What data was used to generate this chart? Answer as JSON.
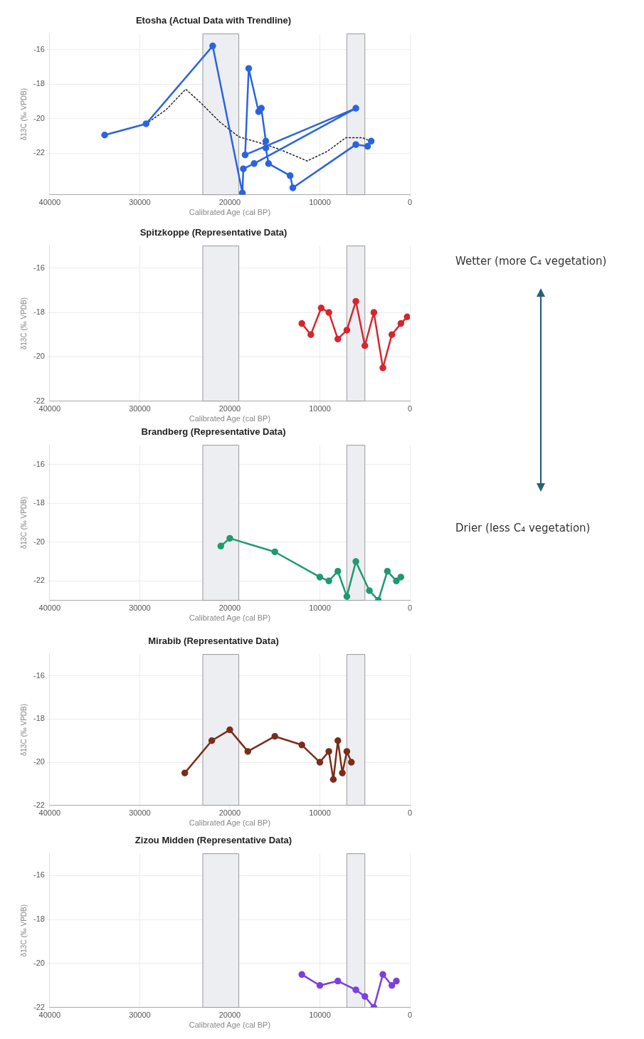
{
  "chart_data": [
    {
      "type": "line",
      "title": "Etosha (Actual Data with Trendline)",
      "xlabel": "Calibrated Age (cal BP)",
      "ylabel": "δ13C (‰ VPDB)",
      "xlim": [
        40000,
        0
      ],
      "xticks": [
        40000,
        30000,
        20000,
        10000,
        0
      ],
      "ylim": [
        -24.4,
        -15.1
      ],
      "yticks": [
        -22,
        -20,
        -18,
        -16
      ],
      "grid": true,
      "marker": "circle",
      "line_style": "solid",
      "bands": [
        {
          "axis": "x",
          "from": 23000,
          "to": 19000,
          "color": "#eceef2"
        },
        {
          "axis": "x",
          "from": 7000,
          "to": 5000,
          "color": "#eceef2"
        }
      ],
      "series": [
        {
          "color": "#2b63e0",
          "x": [
            33900,
            29300,
            21900,
            18600,
            18500,
            17300,
            6000,
            18300,
            17900,
            16800,
            16500,
            16000,
            16000,
            15700,
            13300,
            13000,
            6000,
            4700,
            4300
          ],
          "values": [
            -20.95,
            -20.3,
            -15.8,
            -24.3,
            -22.9,
            -22.6,
            -19.4,
            -22.1,
            -17.1,
            -19.6,
            -19.4,
            -21.3,
            -21.7,
            -22.6,
            -23.3,
            -24.0,
            -21.5,
            -21.6,
            -21.3
          ]
        },
        {
          "color": "#222222",
          "marker": "none",
          "line_style": "dotted",
          "x": [
            29300,
            27100,
            24900,
            23200,
            21100,
            19000,
            16700,
            14600,
            11400,
            9200,
            7100,
            5300,
            4100
          ],
          "values": [
            -20.3,
            -19.5,
            -18.3,
            -19.1,
            -20.2,
            -21.05,
            -21.4,
            -21.75,
            -22.45,
            -21.9,
            -21.1,
            -21.1,
            -21.35
          ]
        }
      ]
    },
    {
      "type": "line",
      "title": "Spitzkoppe (Representative Data)",
      "xlabel": "Calibrated Age (cal BP)",
      "ylabel": "δ13C (‰ VPDB)",
      "xlim": [
        40000,
        0
      ],
      "xticks": [
        40000,
        30000,
        20000,
        10000,
        0
      ],
      "ylim": [
        -22,
        -15
      ],
      "yticks": [
        -22,
        -20,
        -18,
        -16
      ],
      "grid": true,
      "marker": "circle",
      "line_style": "solid",
      "bands": [
        {
          "axis": "x",
          "from": 23000,
          "to": 19000,
          "color": "#eceef2"
        },
        {
          "axis": "x",
          "from": 7000,
          "to": 5000,
          "color": "#eceef2"
        }
      ],
      "series": [
        {
          "color": "#d6262f",
          "x": [
            12000,
            11000,
            9850,
            9000,
            8000,
            7000,
            6000,
            5000,
            4000,
            3000,
            2000,
            1000,
            300
          ],
          "values": [
            -18.5,
            -19.0,
            -17.8,
            -18.0,
            -19.2,
            -18.8,
            -17.5,
            -19.5,
            -18.0,
            -20.5,
            -19.0,
            -18.5,
            -18.2
          ]
        }
      ]
    },
    {
      "type": "line",
      "title": "Brandberg (Representative Data)",
      "xlabel": "Calibrated Age (cal BP)",
      "ylabel": "δ13C (‰ VPDB)",
      "xlim": [
        40000,
        0
      ],
      "xticks": [
        40000,
        30000,
        20000,
        10000,
        0
      ],
      "ylim": [
        -23,
        -15
      ],
      "yticks": [
        -22,
        -20,
        -18,
        -16
      ],
      "grid": true,
      "marker": "circle",
      "line_style": "solid",
      "bands": [
        {
          "axis": "x",
          "from": 23000,
          "to": 19000,
          "color": "#eceef2"
        },
        {
          "axis": "x",
          "from": 7000,
          "to": 5000,
          "color": "#eceef2"
        }
      ],
      "series": [
        {
          "color": "#1f9a6e",
          "x": [
            21000,
            20000,
            15000,
            10000,
            9000,
            8000,
            7000,
            6000,
            4500,
            3500,
            2500,
            1500,
            1000
          ],
          "values": [
            -20.2,
            -19.8,
            -20.5,
            -21.8,
            -22.0,
            -21.5,
            -22.8,
            -21.0,
            -22.5,
            -23.0,
            -21.5,
            -22.0,
            -21.8
          ]
        }
      ]
    },
    {
      "type": "line",
      "title": "Mirabib (Representative Data)",
      "xlabel": "Calibrated Age (cal BP)",
      "ylabel": "δ13C (‰ VPDB)",
      "xlim": [
        40000,
        0
      ],
      "xticks": [
        40000,
        30000,
        20000,
        10000,
        0
      ],
      "ylim": [
        -22,
        -15
      ],
      "yticks": [
        -22,
        -20,
        -18,
        -16
      ],
      "grid": true,
      "marker": "circle",
      "line_style": "solid",
      "bands": [
        {
          "axis": "x",
          "from": 23000,
          "to": 19000,
          "color": "#eceef2"
        },
        {
          "axis": "x",
          "from": 7000,
          "to": 5000,
          "color": "#eceef2"
        }
      ],
      "series": [
        {
          "color": "#7a2e1a",
          "x": [
            25000,
            22000,
            20000,
            18000,
            15000,
            12000,
            10000,
            9000,
            8500,
            8000,
            7500,
            7000,
            6500
          ],
          "values": [
            -20.5,
            -19.0,
            -18.5,
            -19.5,
            -18.8,
            -19.2,
            -20.0,
            -19.5,
            -20.8,
            -19.0,
            -20.5,
            -19.5,
            -20.0
          ]
        }
      ]
    },
    {
      "type": "line",
      "title": "Zizou Midden (Representative Data)",
      "xlabel": "Calibrated Age (cal BP)",
      "ylabel": "δ13C (‰ VPDB)",
      "xlim": [
        40000,
        0
      ],
      "xticks": [
        40000,
        30000,
        20000,
        10000,
        0
      ],
      "ylim": [
        -22,
        -15
      ],
      "yticks": [
        -22,
        -20,
        -18,
        -16
      ],
      "grid": true,
      "marker": "circle",
      "line_style": "solid",
      "bands": [
        {
          "axis": "x",
          "from": 23000,
          "to": 19000,
          "color": "#eceef2"
        },
        {
          "axis": "x",
          "from": 7000,
          "to": 5000,
          "color": "#eceef2"
        }
      ],
      "series": [
        {
          "color": "#7b3fe0",
          "x": [
            12000,
            10000,
            8000,
            6000,
            5000,
            4000,
            3000,
            2000,
            1500
          ],
          "values": [
            -20.5,
            -21.0,
            -20.8,
            -21.2,
            -21.5,
            -22.0,
            -20.5,
            -21.0,
            -20.8
          ]
        }
      ]
    },
    {
      "type": "other",
      "annotations": [
        "Wetter (more C₄ vegetation)",
        "Drier (less C₄ vegetation)"
      ]
    }
  ]
}
